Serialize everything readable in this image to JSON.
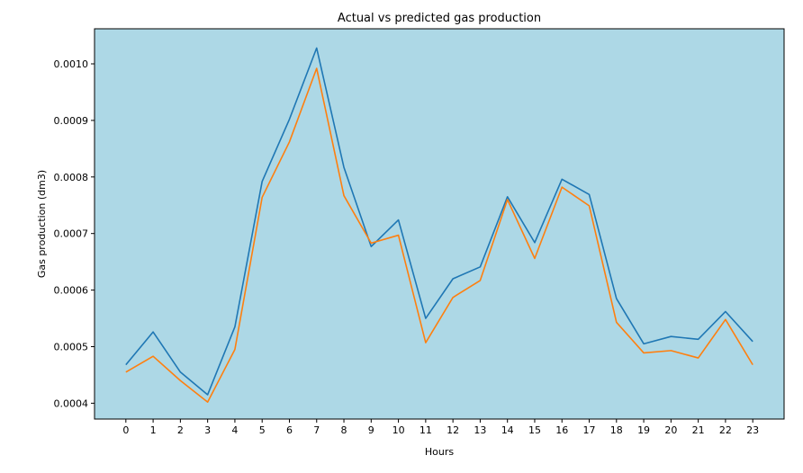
{
  "chart_data": {
    "type": "line",
    "title": "Actual vs predicted gas production",
    "xlabel": "Hours",
    "ylabel": "Gas production (dm3)",
    "x": [
      0,
      1,
      2,
      3,
      4,
      5,
      6,
      7,
      8,
      9,
      10,
      11,
      12,
      13,
      14,
      15,
      16,
      17,
      18,
      19,
      20,
      21,
      22,
      23
    ],
    "x_tick_labels": [
      "0",
      "1",
      "2",
      "3",
      "4",
      "5",
      "6",
      "7",
      "8",
      "9",
      "10",
      "11",
      "12",
      "13",
      "14",
      "15",
      "16",
      "17",
      "18",
      "19",
      "20",
      "21",
      "22",
      "23"
    ],
    "y_tick_values": [
      0.0004,
      0.0005,
      0.0006,
      0.0007,
      0.0008,
      0.0009,
      0.001
    ],
    "y_tick_labels": [
      "0.0004",
      "0.0005",
      "0.0006",
      "0.0007",
      "0.0008",
      "0.0009",
      "0.0010"
    ],
    "xlim": [
      -1.15,
      24.15
    ],
    "ylim": [
      0.000372,
      0.001062
    ],
    "grid": false,
    "plot_background": "#add8e6",
    "series": [
      {
        "color": "#1f77b4",
        "values": [
          0.000468,
          0.000526,
          0.000455,
          0.000415,
          0.000535,
          0.000792,
          0.000902,
          0.001028,
          0.000817,
          0.000677,
          0.000724,
          0.00055,
          0.00062,
          0.000641,
          0.000765,
          0.000684,
          0.000796,
          0.000769,
          0.000585,
          0.000505,
          0.000518,
          0.000513,
          0.000562,
          0.000509
        ]
      },
      {
        "color": "#ff7f0e",
        "values": [
          0.000455,
          0.000483,
          0.00044,
          0.000402,
          0.000495,
          0.000764,
          0.000862,
          0.000992,
          0.000767,
          0.000683,
          0.000697,
          0.000507,
          0.000587,
          0.000617,
          0.00076,
          0.000656,
          0.000782,
          0.000749,
          0.000543,
          0.000489,
          0.000493,
          0.00048,
          0.000548,
          0.000468
        ]
      }
    ]
  }
}
